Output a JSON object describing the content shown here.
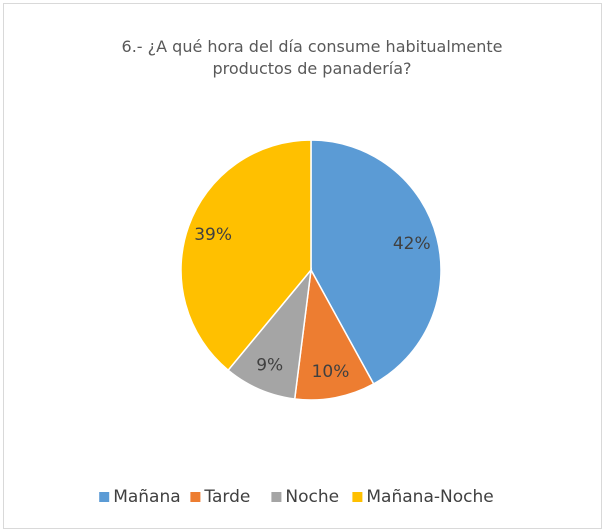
{
  "chart_data": {
    "type": "pie",
    "title": "6.- ¿A qué hora del día consume habitualmente productos de panadería?",
    "categories": [
      "Mañana",
      "Tarde",
      "Noche",
      "Mañana-Noche"
    ],
    "values": [
      42,
      10,
      9,
      39
    ],
    "value_labels": [
      "42%",
      "10%",
      "9%",
      "39%"
    ],
    "colors": [
      "#5b9bd5",
      "#ed7d31",
      "#a5a5a5",
      "#ffc000"
    ],
    "legend": "bottom"
  }
}
